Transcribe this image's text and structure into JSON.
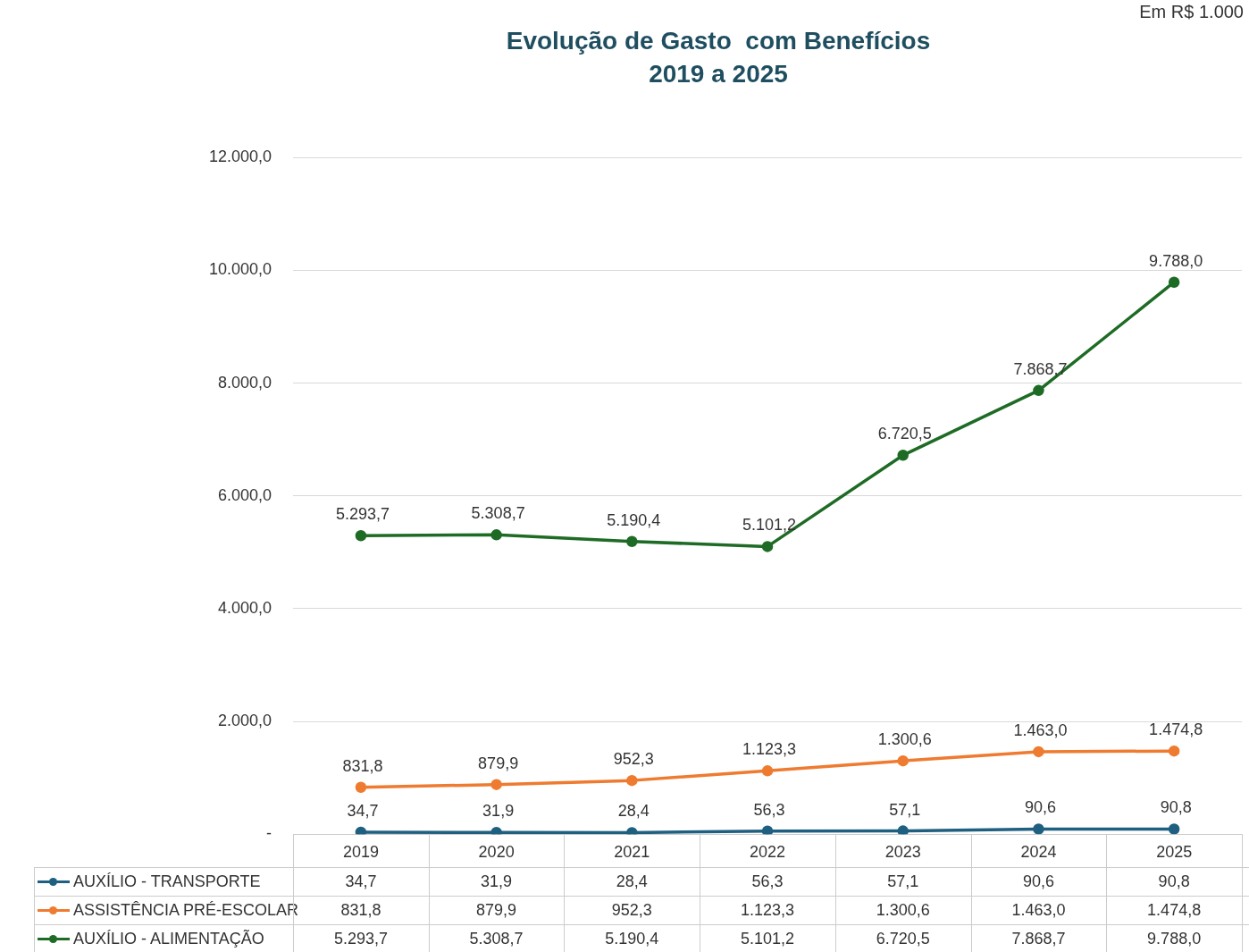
{
  "chart_data": {
    "type": "line",
    "title": "Evolução de Gasto  com Benefícios",
    "subtitle": "2019 a 2025",
    "categories": [
      "2019",
      "2020",
      "2021",
      "2022",
      "2023",
      "2024",
      "2025"
    ],
    "series": [
      {
        "name": "AUXÍLIO - TRANSPORTE",
        "color": "#1f5f80",
        "values": [
          34.7,
          31.9,
          28.4,
          56.3,
          57.1,
          90.6,
          90.8
        ],
        "value_labels": [
          "34,7",
          "31,9",
          "28,4",
          "56,3",
          "57,1",
          "90,6",
          "90,8"
        ]
      },
      {
        "name": "ASSISTÊNCIA PRÉ-ESCOLAR",
        "color": "#ee7b30",
        "values": [
          831.8,
          879.9,
          952.3,
          1123.3,
          1300.6,
          1463.0,
          1474.8
        ],
        "value_labels": [
          "831,8",
          "879,9",
          "952,3",
          "1.123,3",
          "1.300,6",
          "1.463,0",
          "1.474,8"
        ]
      },
      {
        "name": "AUXÍLIO - ALIMENTAÇÃO",
        "color": "#1e6b25",
        "values": [
          5293.7,
          5308.7,
          5190.4,
          5101.2,
          6720.5,
          7868.7,
          9788.0
        ],
        "value_labels": [
          "5.293,7",
          "5.308,7",
          "5.190,4",
          "5.101,2",
          "6.720,5",
          "7.868,7",
          "9.788,0"
        ]
      }
    ],
    "ylim": [
      0,
      12000
    ],
    "yticks": [
      {
        "value": 0,
        "label": "-"
      },
      {
        "value": 2000,
        "label": "2.000,0"
      },
      {
        "value": 4000,
        "label": "4.000,0"
      },
      {
        "value": 6000,
        "label": "6.000,0"
      },
      {
        "value": 8000,
        "label": "8.000,0"
      },
      {
        "value": 10000,
        "label": "10.000,0"
      },
      {
        "value": 12000,
        "label": "12.000,0"
      }
    ],
    "grid": "y",
    "legend": "bottom",
    "marker": "circle",
    "line_style": "solid",
    "annotations": [
      "Em R$ 1.000"
    ]
  }
}
